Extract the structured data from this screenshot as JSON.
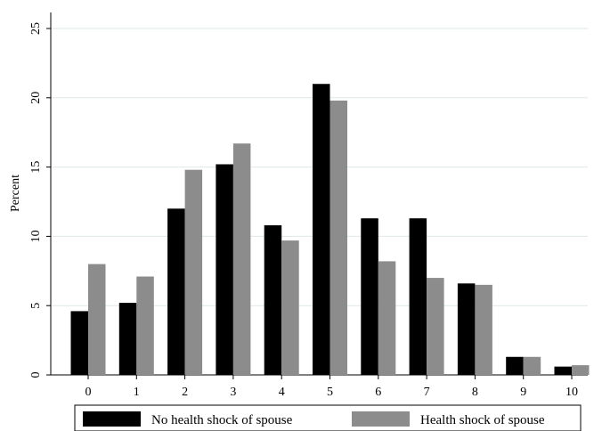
{
  "chart_data": {
    "type": "bar",
    "title": "",
    "xlabel": "",
    "ylabel": "Percent",
    "ylim": [
      0,
      25
    ],
    "yticks": [
      0,
      5,
      10,
      15,
      20,
      25
    ],
    "grid": true,
    "legend_position": "bottom",
    "categories": [
      "0",
      "1",
      "2",
      "3",
      "4",
      "5",
      "6",
      "7",
      "8",
      "9",
      "10"
    ],
    "series": [
      {
        "name": "No health shock of spouse",
        "color": "#000000",
        "values": [
          4.6,
          5.2,
          12.0,
          15.2,
          10.8,
          21.0,
          11.3,
          11.3,
          6.6,
          1.3,
          0.6
        ]
      },
      {
        "name": "Health shock of spouse",
        "color": "#8c8c8c",
        "values": [
          8.0,
          7.1,
          14.8,
          16.7,
          9.7,
          19.8,
          8.2,
          7.0,
          6.5,
          1.3,
          0.7
        ]
      }
    ]
  }
}
